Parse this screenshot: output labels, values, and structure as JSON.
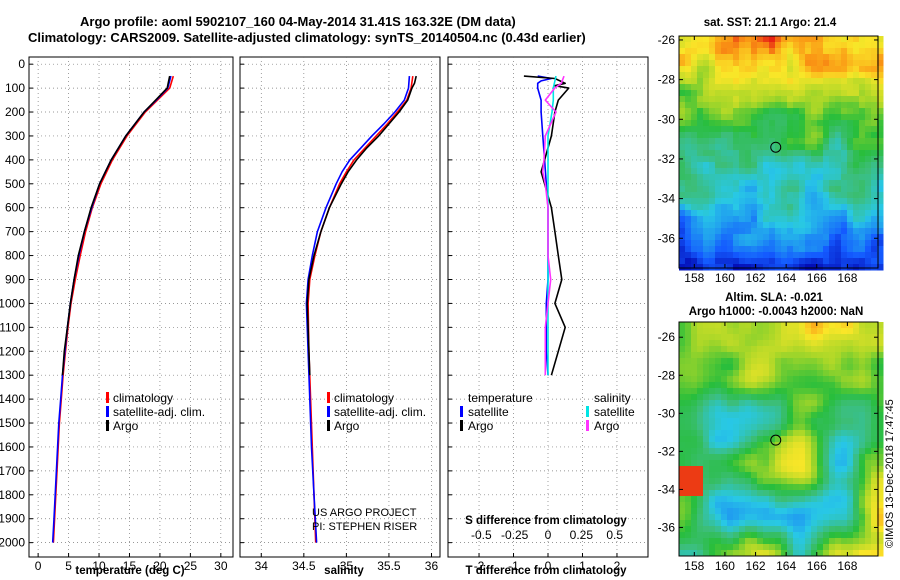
{
  "header": {
    "title_line1": "Argo profile: aoml 5902107_160 04-May-2014 31.41S 163.32E (DM data)",
    "title_line2": "Climatology: CARS2009. Satellite-adjusted climatology: synTS_20140504.nc (0.43d earlier)"
  },
  "depth_axis": {
    "ticks": [
      0,
      100,
      200,
      300,
      400,
      500,
      600,
      700,
      800,
      900,
      1000,
      1100,
      1200,
      1300,
      1400,
      1500,
      1600,
      1700,
      1800,
      1900,
      2000
    ],
    "labels": [
      "0",
      "100",
      "200",
      "300",
      "400",
      "500",
      "600",
      "700",
      "800",
      "900",
      "1000",
      "1100",
      "1200",
      "1300",
      "1400",
      "1500",
      "1600",
      "1700",
      "1800",
      "1900",
      "2000"
    ]
  },
  "colors": {
    "climatology": "#ff0000",
    "satellite": "#0000ff",
    "argo": "#000000",
    "sal_satellite": "#00e5e5",
    "sal_argo": "#ff33ff"
  },
  "chart_data": [
    {
      "id": "temperature",
      "type": "line",
      "xlabel": "temperature (deg C)",
      "ylabel": "",
      "xlim": [
        -1.5,
        32
      ],
      "ylim": [
        2060,
        -30
      ],
      "xticks": [
        0,
        5,
        10,
        15,
        20,
        25,
        30
      ],
      "xticklabels": [
        "0",
        "5",
        "10",
        "15",
        "20",
        "25",
        "30"
      ],
      "legend": [
        "climatology",
        "satellite-adj. clim.",
        "Argo"
      ],
      "series": [
        {
          "name": "climatology",
          "color": "#ff0000",
          "depth": [
            50,
            100,
            150,
            200,
            300,
            400,
            500,
            600,
            700,
            800,
            900,
            1000,
            1100,
            1200,
            1300,
            1400,
            1500,
            1600,
            1700,
            1800,
            1900,
            2000
          ],
          "values": [
            22.2,
            21.6,
            19.6,
            17.6,
            14.6,
            12.2,
            10.3,
            8.9,
            7.8,
            6.9,
            6.1,
            5.4,
            4.9,
            4.5,
            4.1,
            3.8,
            3.5,
            3.3,
            3.1,
            2.9,
            2.7,
            2.5
          ]
        },
        {
          "name": "satellite-adj. clim.",
          "color": "#0000ff",
          "depth": [
            50,
            100,
            150,
            200,
            300,
            400,
            500,
            600,
            700,
            800,
            900,
            1000,
            1100,
            1200,
            1300,
            1400,
            1500,
            1600,
            1700,
            1800,
            1900,
            2000
          ],
          "values": [
            21.8,
            21.3,
            19.4,
            17.4,
            14.4,
            12.0,
            10.1,
            8.8,
            7.6,
            6.7,
            5.9,
            5.3,
            4.8,
            4.4,
            4.0,
            3.7,
            3.4,
            3.2,
            3.0,
            2.8,
            2.6,
            2.4
          ]
        },
        {
          "name": "Argo",
          "color": "#000000",
          "depth": [
            50,
            100,
            150,
            200,
            300,
            400,
            500,
            600,
            700,
            800,
            900,
            1000,
            1100,
            1200,
            1300
          ],
          "values": [
            21.6,
            21.2,
            19.3,
            17.4,
            14.4,
            12.0,
            10.1,
            8.7,
            7.6,
            6.6,
            5.9,
            5.3,
            4.8,
            4.3,
            4.0
          ]
        }
      ]
    },
    {
      "id": "salinity",
      "type": "line",
      "xlabel": "salinity",
      "ylabel": "",
      "xlim": [
        33.75,
        36.1
      ],
      "ylim": [
        2060,
        -30
      ],
      "xticks": [
        34,
        34.5,
        35,
        35.5,
        36
      ],
      "xticklabels": [
        "34",
        "34.5",
        "35",
        "35.5",
        "36"
      ],
      "legend": [
        "climatology",
        "satellite-adj. clim.",
        "Argo"
      ],
      "annotation": [
        "US ARGO PROJECT",
        "PI: STEPHEN RISER"
      ],
      "series": [
        {
          "name": "climatology",
          "color": "#ff0000",
          "depth": [
            50,
            100,
            150,
            200,
            250,
            300,
            350,
            400,
            450,
            500,
            600,
            700,
            800,
            900,
            1000,
            1200,
            1400,
            1600,
            1800,
            2000
          ],
          "values": [
            35.78,
            35.76,
            35.71,
            35.6,
            35.48,
            35.35,
            35.22,
            35.09,
            35.0,
            34.92,
            34.8,
            34.7,
            34.63,
            34.57,
            34.55,
            34.56,
            34.58,
            34.6,
            34.62,
            34.64
          ]
        },
        {
          "name": "satellite-adj. clim.",
          "color": "#0000ff",
          "depth": [
            50,
            100,
            150,
            200,
            250,
            300,
            350,
            400,
            450,
            500,
            600,
            700,
            800,
            900,
            1000,
            1200,
            1400,
            1600,
            1800,
            2000
          ],
          "values": [
            35.74,
            35.73,
            35.68,
            35.57,
            35.44,
            35.3,
            35.17,
            35.04,
            34.95,
            34.88,
            34.76,
            34.66,
            34.6,
            34.55,
            34.53,
            34.55,
            34.57,
            34.59,
            34.62,
            34.65
          ]
        },
        {
          "name": "Argo",
          "color": "#000000",
          "depth": [
            50,
            80,
            100,
            150,
            200,
            250,
            300,
            350,
            400,
            450,
            500,
            600,
            700,
            800,
            900,
            1000,
            1100,
            1200,
            1300
          ],
          "values": [
            35.82,
            35.8,
            35.77,
            35.72,
            35.62,
            35.5,
            35.38,
            35.24,
            35.12,
            35.02,
            34.94,
            34.8,
            34.7,
            34.62,
            34.56,
            34.54,
            34.55,
            34.56,
            34.57
          ]
        }
      ]
    },
    {
      "id": "difference",
      "type": "line",
      "xlabel": "T difference from climatology",
      "xlabel2": "S difference from climatology",
      "xlim": [
        -2.9,
        2.9
      ],
      "ylim": [
        2060,
        -30
      ],
      "xticks": [
        -2,
        -1,
        0,
        1,
        2
      ],
      "xticklabels": [
        "-2",
        "-1",
        "0",
        "1",
        "2"
      ],
      "x2ticks": [
        -0.5,
        -0.25,
        0,
        0.25,
        0.5
      ],
      "x2ticklabels": [
        "-0.5",
        "-0.25",
        "0",
        "0.25",
        "0.5"
      ],
      "legend_t_title": "temperature",
      "legend_s_title": "salinity",
      "legend": [
        "satellite",
        "Argo",
        "satellite",
        "Argo"
      ],
      "series": [
        {
          "name": "T satellite",
          "color": "#0000ff",
          "depth": [
            50,
            60,
            70,
            80,
            100,
            150,
            200,
            300,
            400,
            500,
            600,
            700,
            800,
            900,
            1000,
            1100,
            1200,
            1300
          ],
          "values": [
            -0.3,
            0.1,
            -0.2,
            -0.3,
            -0.3,
            -0.2,
            -0.2,
            -0.15,
            -0.1,
            -0.05,
            0.0,
            0.0,
            0.0,
            0.0,
            -0.05,
            -0.05,
            -0.05,
            0.0
          ]
        },
        {
          "name": "T Argo",
          "color": "#000000",
          "depth": [
            50,
            60,
            80,
            90,
            100,
            150,
            200,
            300,
            400,
            450,
            500,
            600,
            700,
            800,
            900,
            1000,
            1100,
            1200,
            1300
          ],
          "values": [
            -0.7,
            0.2,
            0.5,
            0.2,
            0.6,
            0.3,
            0.2,
            0.1,
            -0.1,
            -0.2,
            -0.1,
            0.1,
            0.2,
            0.3,
            0.4,
            0.2,
            0.5,
            0.3,
            0.1
          ]
        },
        {
          "name": "S satellite",
          "color": "#00e5e5",
          "depth": [
            50,
            100,
            150,
            200,
            300,
            400,
            500,
            600,
            700,
            800,
            900,
            1000,
            1100,
            1200,
            1300
          ],
          "values": [
            0.06,
            0.04,
            0.04,
            0.03,
            0.0,
            0.0,
            0.0,
            0.0,
            0.0,
            0.0,
            0.0,
            0.0,
            0.0,
            0.0,
            0.0
          ]
        },
        {
          "name": "S Argo",
          "color": "#ff33ff",
          "depth": [
            50,
            80,
            100,
            150,
            200,
            300,
            400,
            450,
            500,
            600,
            700,
            800,
            900,
            1000,
            1100,
            1200,
            1300
          ],
          "values": [
            0.12,
            0.1,
            0.05,
            -0.02,
            0.06,
            -0.02,
            -0.03,
            -0.04,
            -0.02,
            0.0,
            0.0,
            0.0,
            0.02,
            0.0,
            -0.02,
            -0.02,
            -0.02
          ]
        }
      ]
    },
    {
      "id": "sst_map",
      "type": "heatmap",
      "title": "sat. SST: 21.1 Argo: 21.4",
      "xlim": [
        157,
        170
      ],
      "ylim": [
        -37.5,
        -25.8
      ],
      "xticks": [
        158,
        160,
        162,
        164,
        166,
        168
      ],
      "xticklabels": [
        "158",
        "160",
        "162",
        "164",
        "166",
        "168"
      ],
      "yticks": [
        -26,
        -28,
        -30,
        -32,
        -34,
        -36
      ],
      "yticklabels": [
        "-26",
        "-28",
        "-30",
        "-32",
        "-34",
        "-36"
      ],
      "argo_position": [
        163.32,
        -31.41
      ]
    },
    {
      "id": "sla_map",
      "type": "heatmap",
      "title_line1": "Altim. SLA: -0.021",
      "title_line2": "Argo h1000: -0.0043 h2000: NaN",
      "xlim": [
        157,
        170
      ],
      "ylim": [
        -37.5,
        -25.2
      ],
      "xticks": [
        158,
        160,
        162,
        164,
        166,
        168
      ],
      "xticklabels": [
        "158",
        "160",
        "162",
        "164",
        "166",
        "168"
      ],
      "yticks": [
        -26,
        -28,
        -30,
        -32,
        -34,
        -36
      ],
      "yticklabels": [
        "-26",
        "-28",
        "-30",
        "-32",
        "-34",
        "-36"
      ],
      "argo_position": [
        163.32,
        -31.41
      ]
    }
  ],
  "watermark": "©IMOS 13-Dec-2018 17:47:45"
}
